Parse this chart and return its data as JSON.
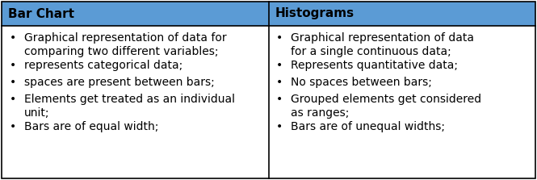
{
  "header_bg_color": "#5B9BD5",
  "header_text_color": "#000000",
  "body_bg_color": "#FFFFFF",
  "border_color": "#000000",
  "col1_header": "Bar Chart",
  "col2_header": "Histograms",
  "col1_bullets": [
    "Graphical representation of data for\ncomparing two different variables;",
    "represents categorical data;",
    "spaces are present between bars;",
    "Elements get treated as an individual\nunit;",
    "Bars are of equal width;"
  ],
  "col2_bullets": [
    "Graphical representation of data\nfor a single continuous data;",
    "Represents quantitative data;",
    "No spaces between bars;",
    "Grouped elements get considered\nas ranges;",
    "Bars are of unequal widths;"
  ],
  "header_fontsize": 11,
  "body_fontsize": 10,
  "fig_width": 6.65,
  "fig_height": 2.23,
  "dpi": 100
}
